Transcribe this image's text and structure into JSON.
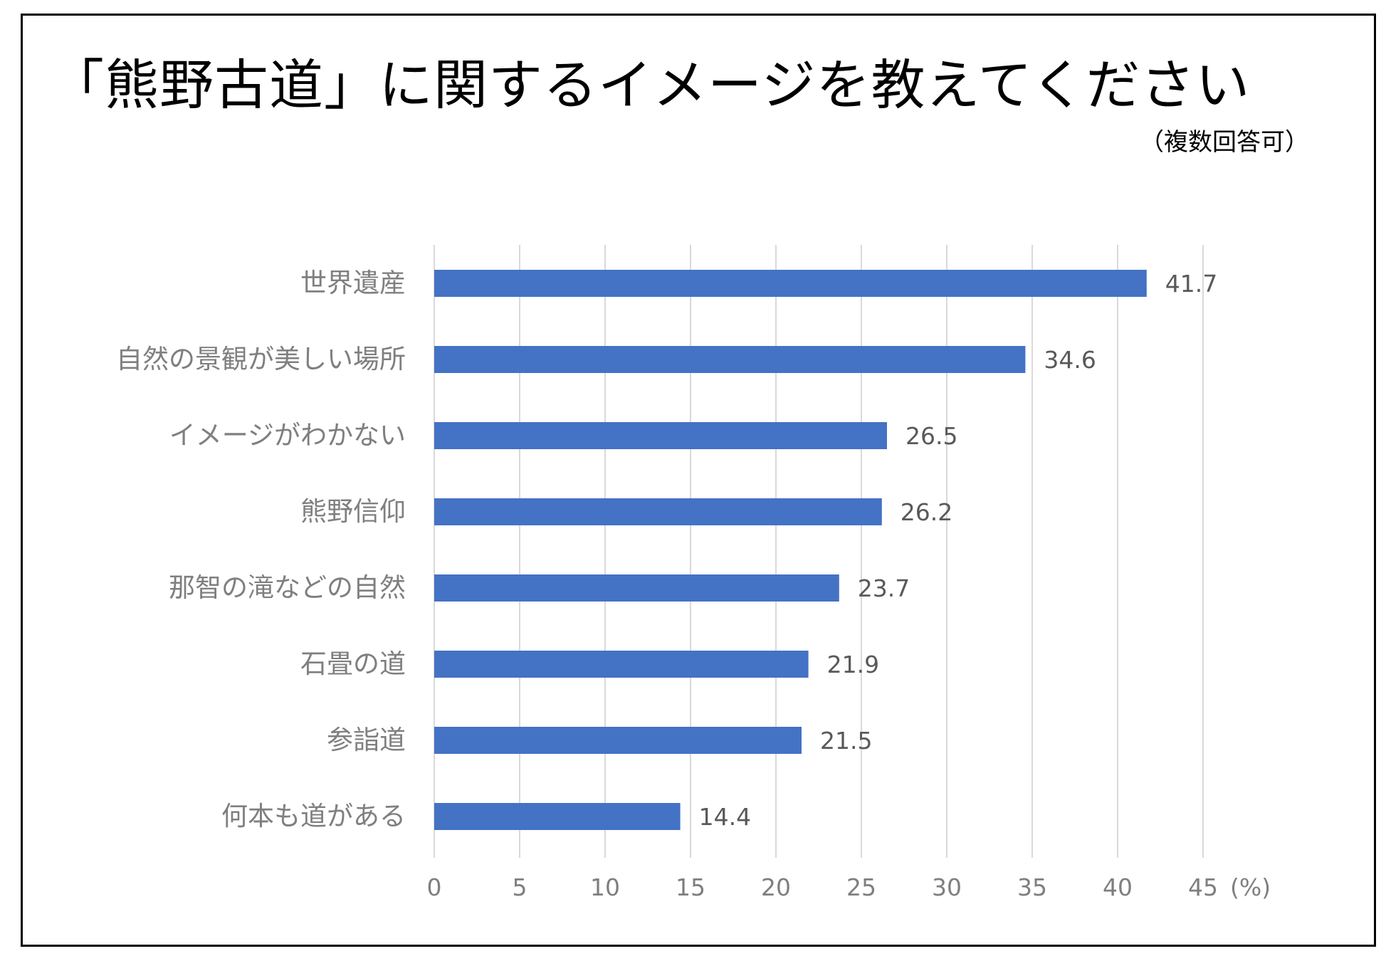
{
  "chart_data": {
    "type": "bar",
    "orientation": "horizontal",
    "title": "「熊野古道」に関するイメージを教えてください",
    "subtitle": "（複数回答可）",
    "categories": [
      "世界遺産",
      "自然の景観が美しい場所",
      "イメージがわかない",
      "熊野信仰",
      "那智の滝などの自然",
      "石畳の道",
      "参詣道",
      "何本も道がある"
    ],
    "values": [
      41.7,
      34.6,
      26.5,
      26.2,
      23.7,
      21.9,
      21.5,
      14.4
    ],
    "value_labels": [
      "41.7",
      "34.6",
      "26.5",
      "26.2",
      "23.7",
      "21.9",
      "21.5",
      "14.4"
    ],
    "xlim": [
      0,
      45
    ],
    "xticks": [
      "0",
      "5",
      "10",
      "15",
      "20",
      "25",
      "30",
      "35",
      "40",
      "45"
    ],
    "x_unit": "(%)",
    "grid": "vertical",
    "bar_color": "#4472c4",
    "grid_color": "#d9d9d9"
  }
}
